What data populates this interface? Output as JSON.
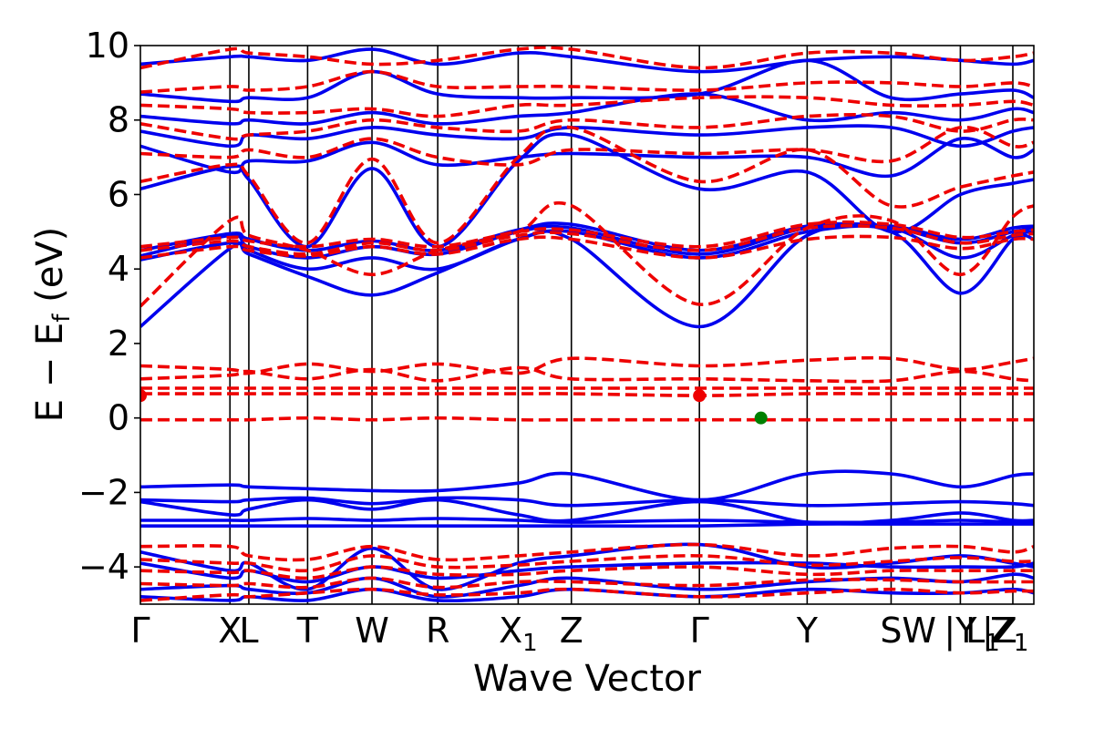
{
  "chart_data": {
    "type": "line",
    "title": "",
    "xlabel": "Wave Vector",
    "ylabel": "E − E",
    "ylabel_subscript": "f",
    "ylabel_unit": " (eV)",
    "ylim": [
      -5,
      10
    ],
    "yticks": [
      -4,
      -2,
      0,
      2,
      4,
      6,
      8,
      10
    ],
    "grid": false,
    "xlim": [
      0,
      12.77
    ],
    "k_points": [
      {
        "label": "Γ",
        "sub": "",
        "x": 0
      },
      {
        "label": "X",
        "sub": "",
        "x": 1.28
      },
      {
        "label": "L",
        "sub": "",
        "x": 1.55
      },
      {
        "label": "T",
        "sub": "",
        "x": 2.39
      },
      {
        "label": "W",
        "sub": "",
        "x": 3.31
      },
      {
        "label": "R",
        "sub": "",
        "x": 4.25
      },
      {
        "label": "X",
        "sub": "1",
        "x": 5.4
      },
      {
        "label": "Z",
        "sub": "",
        "x": 6.16
      },
      {
        "label": "Γ",
        "sub": "",
        "x": 7.99
      },
      {
        "label": "Y",
        "sub": "",
        "x": 9.53
      },
      {
        "label": "S",
        "sub": "",
        "x": 10.73
      },
      {
        "label": "W",
        "sub": "",
        "x": 11.13
      },
      {
        "label": "|Y",
        "sub": "",
        "x": 11.72
      },
      {
        "label": "L",
        "sub": "1",
        "x": 12.04
      },
      {
        "label": "|Z",
        "sub": "",
        "x": 12.28
      },
      {
        "label": "Z",
        "sub": "1",
        "x": 12.42
      }
    ],
    "vlines_x": [
      1.28,
      1.55,
      2.39,
      3.31,
      4.25,
      5.4,
      6.16,
      7.99,
      9.53,
      10.73,
      11.72,
      12.47
    ],
    "path_x": [
      0,
      1.28,
      1.55,
      2.39,
      3.31,
      4.25,
      5.4,
      6.16,
      7.99,
      9.53,
      10.73,
      11.72,
      12.47,
      12.77
    ],
    "series": [
      {
        "style": "blue-solid",
        "color": "#0000ee",
        "values": [
          2.45,
          4.55,
          4.4,
          3.8,
          3.3,
          3.9,
          4.8,
          4.8,
          2.45,
          4.9,
          5.0,
          3.35,
          4.8,
          4.8
        ]
      },
      {
        "style": "blue-solid",
        "color": "#0000ee",
        "values": [
          4.25,
          4.7,
          4.5,
          4.0,
          4.3,
          4.0,
          4.8,
          5.0,
          4.3,
          5.0,
          5.1,
          4.3,
          4.9,
          5.0
        ]
      },
      {
        "style": "blue-solid",
        "color": "#0000ee",
        "values": [
          4.35,
          4.9,
          4.6,
          4.3,
          4.6,
          4.4,
          5.0,
          5.1,
          4.4,
          5.1,
          5.1,
          4.7,
          5.0,
          5.1
        ]
      },
      {
        "style": "blue-solid",
        "color": "#0000ee",
        "values": [
          4.5,
          4.95,
          4.8,
          4.5,
          4.75,
          4.5,
          5.05,
          5.2,
          4.5,
          5.15,
          5.15,
          4.8,
          5.1,
          5.15
        ]
      },
      {
        "style": "blue-solid",
        "color": "#0000ee",
        "values": [
          6.15,
          6.75,
          6.4,
          4.6,
          6.7,
          4.6,
          6.9,
          7.6,
          6.15,
          6.6,
          5.0,
          6.0,
          6.3,
          6.4
        ]
      },
      {
        "style": "blue-solid",
        "color": "#0000ee",
        "values": [
          7.3,
          6.6,
          6.9,
          6.9,
          7.4,
          6.8,
          7.0,
          7.1,
          7.0,
          7.0,
          6.5,
          7.5,
          7.0,
          7.2
        ]
      },
      {
        "style": "blue-solid",
        "color": "#0000ee",
        "values": [
          7.7,
          7.3,
          7.6,
          7.5,
          7.8,
          7.6,
          7.5,
          7.8,
          7.6,
          7.8,
          7.8,
          7.3,
          7.7,
          7.8
        ]
      },
      {
        "style": "blue-solid",
        "color": "#0000ee",
        "values": [
          8.1,
          7.9,
          8.0,
          7.9,
          8.2,
          7.9,
          8.1,
          8.2,
          8.7,
          8.0,
          8.2,
          8.0,
          8.3,
          8.2
        ]
      },
      {
        "style": "blue-solid",
        "color": "#0000ee",
        "values": [
          8.7,
          8.5,
          8.6,
          8.6,
          9.3,
          8.7,
          8.6,
          8.6,
          8.7,
          9.6,
          8.6,
          8.7,
          8.8,
          8.6
        ]
      },
      {
        "style": "blue-solid",
        "color": "#0000ee",
        "values": [
          9.5,
          9.7,
          9.7,
          9.6,
          9.9,
          9.5,
          9.8,
          9.7,
          9.3,
          9.6,
          9.7,
          9.6,
          9.5,
          9.6
        ]
      },
      {
        "style": "blue-solid",
        "color": "#0000ee",
        "values": [
          -1.85,
          -1.8,
          -1.85,
          -1.9,
          -1.95,
          -1.95,
          -1.75,
          -1.5,
          -2.2,
          -1.5,
          -1.5,
          -1.85,
          -1.55,
          -1.5
        ]
      },
      {
        "style": "blue-solid",
        "color": "#0000ee",
        "values": [
          -2.2,
          -2.25,
          -2.2,
          -2.15,
          -2.3,
          -2.15,
          -2.2,
          -2.35,
          -2.2,
          -2.35,
          -2.3,
          -2.25,
          -2.3,
          -2.35
        ]
      },
      {
        "style": "blue-solid",
        "color": "#0000ee",
        "values": [
          -2.25,
          -2.6,
          -2.45,
          -2.2,
          -2.45,
          -2.2,
          -2.6,
          -2.75,
          -2.25,
          -2.8,
          -2.75,
          -2.55,
          -2.75,
          -2.75
        ]
      },
      {
        "style": "blue-solid",
        "color": "#0000ee",
        "values": [
          -2.75,
          -2.75,
          -2.75,
          -2.7,
          -2.75,
          -2.7,
          -2.75,
          -2.8,
          -2.75,
          -2.8,
          -2.8,
          -2.75,
          -2.8,
          -2.8
        ]
      },
      {
        "style": "blue-solid",
        "color": "#0000ee",
        "values": [
          -2.9,
          -2.9,
          -2.9,
          -2.9,
          -2.9,
          -2.9,
          -2.9,
          -2.9,
          -2.9,
          -2.85,
          -2.85,
          -2.85,
          -2.85,
          -2.85
        ]
      },
      {
        "style": "blue-solid",
        "color": "#0000ee",
        "values": [
          -3.6,
          -4.1,
          -3.9,
          -4.6,
          -3.5,
          -4.6,
          -3.9,
          -3.7,
          -3.4,
          -4.0,
          -3.9,
          -3.7,
          -3.9,
          -4.0
        ]
      },
      {
        "style": "blue-solid",
        "color": "#0000ee",
        "values": [
          -3.9,
          -4.3,
          -4.1,
          -4.4,
          -4.0,
          -4.3,
          -4.1,
          -4.0,
          -3.9,
          -3.9,
          -4.0,
          -4.0,
          -4.0,
          -3.9
        ]
      },
      {
        "style": "blue-solid",
        "color": "#0000ee",
        "values": [
          -4.6,
          -4.5,
          -4.6,
          -4.7,
          -4.3,
          -4.8,
          -4.5,
          -4.3,
          -4.6,
          -4.4,
          -4.3,
          -4.4,
          -4.2,
          -4.3
        ]
      },
      {
        "style": "blue-solid",
        "color": "#0000ee",
        "values": [
          -4.8,
          -4.9,
          -4.8,
          -4.9,
          -4.6,
          -4.9,
          -4.8,
          -4.6,
          -4.8,
          -4.6,
          -4.7,
          -4.7,
          -4.6,
          -4.7
        ]
      },
      {
        "style": "red-dashed",
        "color": "#ee0000",
        "values": [
          3.0,
          5.3,
          4.9,
          4.5,
          3.85,
          4.5,
          5.0,
          5.7,
          3.05,
          5.1,
          5.3,
          3.85,
          5.4,
          5.7
        ]
      },
      {
        "style": "red-dashed",
        "color": "#ee0000",
        "values": [
          4.3,
          4.6,
          4.5,
          4.35,
          4.6,
          4.4,
          4.8,
          4.8,
          4.3,
          4.8,
          4.85,
          4.55,
          4.8,
          4.8
        ]
      },
      {
        "style": "red-dashed",
        "color": "#ee0000",
        "values": [
          4.5,
          4.75,
          4.6,
          4.4,
          4.7,
          4.5,
          4.9,
          4.95,
          4.5,
          5.1,
          5.1,
          4.7,
          4.9,
          4.95
        ]
      },
      {
        "style": "red-dashed",
        "color": "#ee0000",
        "values": [
          4.6,
          4.85,
          4.75,
          4.6,
          4.8,
          4.6,
          5.0,
          5.05,
          4.6,
          5.2,
          5.2,
          4.85,
          5.0,
          5.05
        ]
      },
      {
        "style": "red-dashed",
        "color": "#ee0000",
        "values": [
          6.35,
          6.8,
          6.5,
          4.7,
          6.95,
          4.7,
          7.0,
          7.8,
          6.35,
          7.2,
          5.7,
          6.2,
          6.5,
          6.6
        ]
      },
      {
        "style": "red-dashed",
        "color": "#ee0000",
        "values": [
          7.1,
          7.0,
          7.2,
          7.0,
          7.5,
          7.0,
          6.8,
          7.2,
          7.1,
          7.2,
          6.9,
          7.8,
          7.3,
          7.4
        ]
      },
      {
        "style": "red-dashed",
        "color": "#ee0000",
        "values": [
          7.9,
          7.5,
          7.6,
          7.7,
          8.0,
          7.8,
          7.7,
          8.0,
          7.8,
          8.1,
          8.1,
          7.7,
          8.0,
          8.0
        ]
      },
      {
        "style": "red-dashed",
        "color": "#ee0000",
        "values": [
          8.4,
          8.3,
          8.2,
          8.2,
          8.3,
          8.1,
          8.4,
          8.4,
          8.6,
          8.6,
          8.4,
          8.4,
          8.5,
          8.4
        ]
      },
      {
        "style": "red-dashed",
        "color": "#ee0000",
        "values": [
          8.75,
          8.9,
          8.8,
          8.9,
          9.3,
          8.9,
          8.9,
          8.9,
          8.8,
          9.0,
          9.0,
          8.9,
          9.0,
          8.9
        ]
      },
      {
        "style": "red-dashed",
        "color": "#ee0000",
        "values": [
          9.4,
          9.9,
          9.8,
          9.7,
          9.5,
          9.6,
          9.9,
          9.9,
          9.4,
          9.8,
          9.8,
          9.6,
          9.7,
          9.8
        ]
      },
      {
        "style": "red-dashed",
        "color": "#ee0000",
        "values": [
          1.4,
          1.3,
          1.2,
          1.45,
          1.25,
          1.45,
          1.2,
          1.6,
          1.4,
          1.55,
          1.6,
          1.3,
          1.5,
          1.6
        ]
      },
      {
        "style": "red-dashed",
        "color": "#ee0000",
        "values": [
          1.05,
          1.15,
          1.25,
          1.05,
          1.3,
          1.0,
          1.35,
          1.05,
          1.05,
          1.0,
          1.0,
          1.25,
          1.05,
          1.0
        ]
      },
      {
        "style": "red-dashed",
        "color": "#ee0000",
        "values": [
          0.8,
          0.8,
          0.8,
          0.8,
          0.8,
          0.8,
          0.8,
          0.8,
          0.8,
          0.8,
          0.8,
          0.8,
          0.8,
          0.8
        ]
      },
      {
        "style": "red-dashed",
        "color": "#ee0000",
        "values": [
          0.65,
          0.65,
          0.65,
          0.65,
          0.65,
          0.65,
          0.65,
          0.65,
          0.6,
          0.65,
          0.65,
          0.65,
          0.65,
          0.65
        ]
      },
      {
        "style": "red-dashed",
        "color": "#ee0000",
        "values": [
          -0.05,
          -0.05,
          -0.05,
          0.0,
          -0.05,
          0.0,
          -0.05,
          -0.05,
          -0.05,
          -0.05,
          -0.05,
          -0.05,
          -0.05,
          -0.05
        ]
      },
      {
        "style": "red-dashed",
        "color": "#ee0000",
        "values": [
          -3.45,
          -3.45,
          -3.7,
          -3.8,
          -3.45,
          -3.8,
          -3.7,
          -3.6,
          -3.4,
          -3.7,
          -3.5,
          -3.45,
          -3.6,
          -3.45
        ]
      },
      {
        "style": "red-dashed",
        "color": "#ee0000",
        "values": [
          -3.8,
          -3.9,
          -3.9,
          -4.1,
          -3.7,
          -4.0,
          -3.95,
          -3.85,
          -3.7,
          -3.95,
          -3.85,
          -3.75,
          -3.85,
          -3.85
        ]
      },
      {
        "style": "red-dashed",
        "color": "#ee0000",
        "values": [
          -4.1,
          -4.15,
          -4.1,
          -4.3,
          -4.0,
          -4.2,
          -4.2,
          -4.1,
          -4.0,
          -4.2,
          -4.1,
          -4.1,
          -4.1,
          -4.1
        ]
      },
      {
        "style": "red-dashed",
        "color": "#ee0000",
        "values": [
          -4.45,
          -4.5,
          -4.45,
          -4.55,
          -4.3,
          -4.55,
          -4.4,
          -4.4,
          -4.5,
          -4.35,
          -4.35,
          -4.4,
          -4.4,
          -4.4
        ]
      },
      {
        "style": "red-dashed",
        "color": "#ee0000",
        "values": [
          -4.9,
          -4.75,
          -4.8,
          -4.7,
          -4.6,
          -4.75,
          -4.7,
          -4.6,
          -4.8,
          -4.7,
          -4.6,
          -4.7,
          -4.65,
          -4.65
        ]
      }
    ],
    "points": [
      {
        "x": 0.0,
        "y": 0.6,
        "color": "#ee0000"
      },
      {
        "x": 7.99,
        "y": 0.6,
        "color": "#ee0000"
      },
      {
        "x": 8.87,
        "y": 0.0,
        "color": "#008000"
      }
    ]
  }
}
